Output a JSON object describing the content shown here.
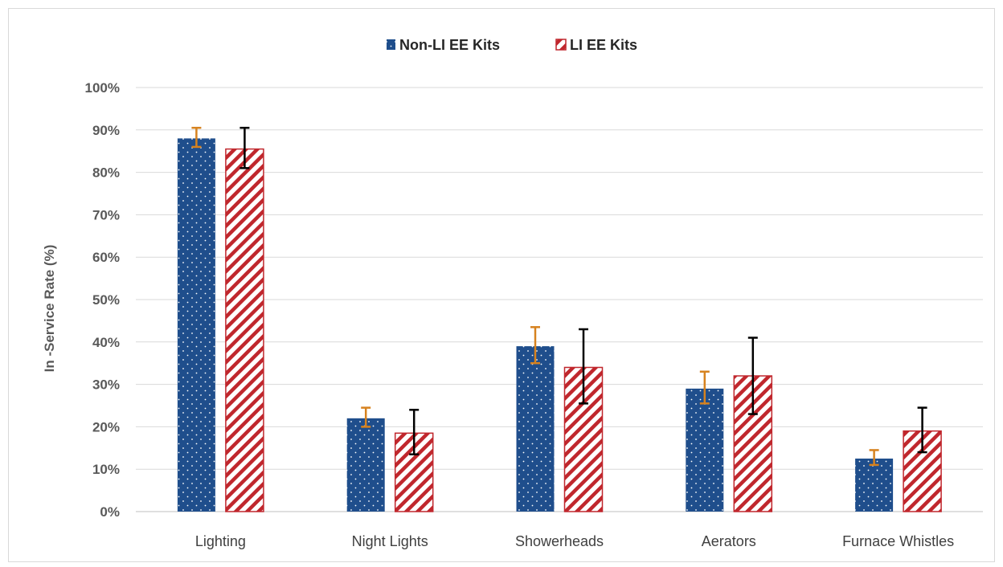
{
  "chart_data": {
    "type": "bar",
    "title": "",
    "xlabel": "",
    "ylabel": "In -Service Rate  (%)",
    "ylim": [
      0,
      100
    ],
    "y_ticks": [
      0,
      10,
      20,
      30,
      40,
      50,
      60,
      70,
      80,
      90,
      100
    ],
    "y_tick_format": "percent",
    "grid": true,
    "legend_position": "top-center",
    "categories": [
      "Lighting",
      "Night Lights",
      "Showerheads",
      "Aerators",
      "Furnace Whistles"
    ],
    "series": [
      {
        "name": "Non-LI EE Kits",
        "color": "#1f4e8c",
        "pattern": "dots",
        "values": [
          88,
          22,
          39,
          29,
          12.5
        ],
        "error_low": [
          86,
          20,
          35,
          25.5,
          11
        ],
        "error_high": [
          90.5,
          24.5,
          43.5,
          33,
          14.5
        ],
        "error_color": "#d6821f"
      },
      {
        "name": "LI EE Kits",
        "color": "#c0272d",
        "pattern": "diagonal-stripes",
        "values": [
          85.5,
          18.5,
          34,
          32,
          19
        ],
        "error_low": [
          81,
          13.5,
          25.5,
          23,
          14
        ],
        "error_high": [
          90.5,
          24,
          43,
          41,
          24.5
        ],
        "error_color": "#000000"
      }
    ]
  }
}
